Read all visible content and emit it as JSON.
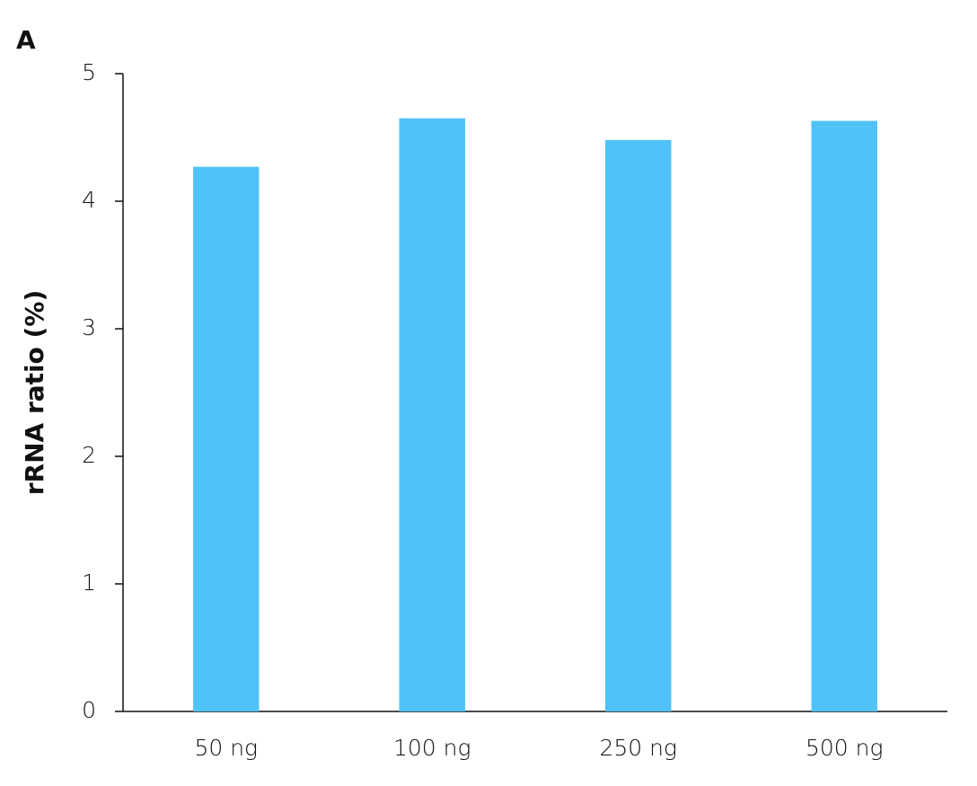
{
  "chart_data": {
    "type": "bar",
    "panel_label": "A",
    "ylabel": "rRNA ratio (%)",
    "categories": [
      "50 ng",
      "100 ng",
      "250 ng",
      "500 ng"
    ],
    "values": [
      4.27,
      4.65,
      4.48,
      4.63
    ],
    "color": "#50c2f7",
    "ylim": [
      0,
      5
    ],
    "yticks": [
      0,
      1,
      2,
      3,
      4,
      5
    ],
    "grid": false
  }
}
